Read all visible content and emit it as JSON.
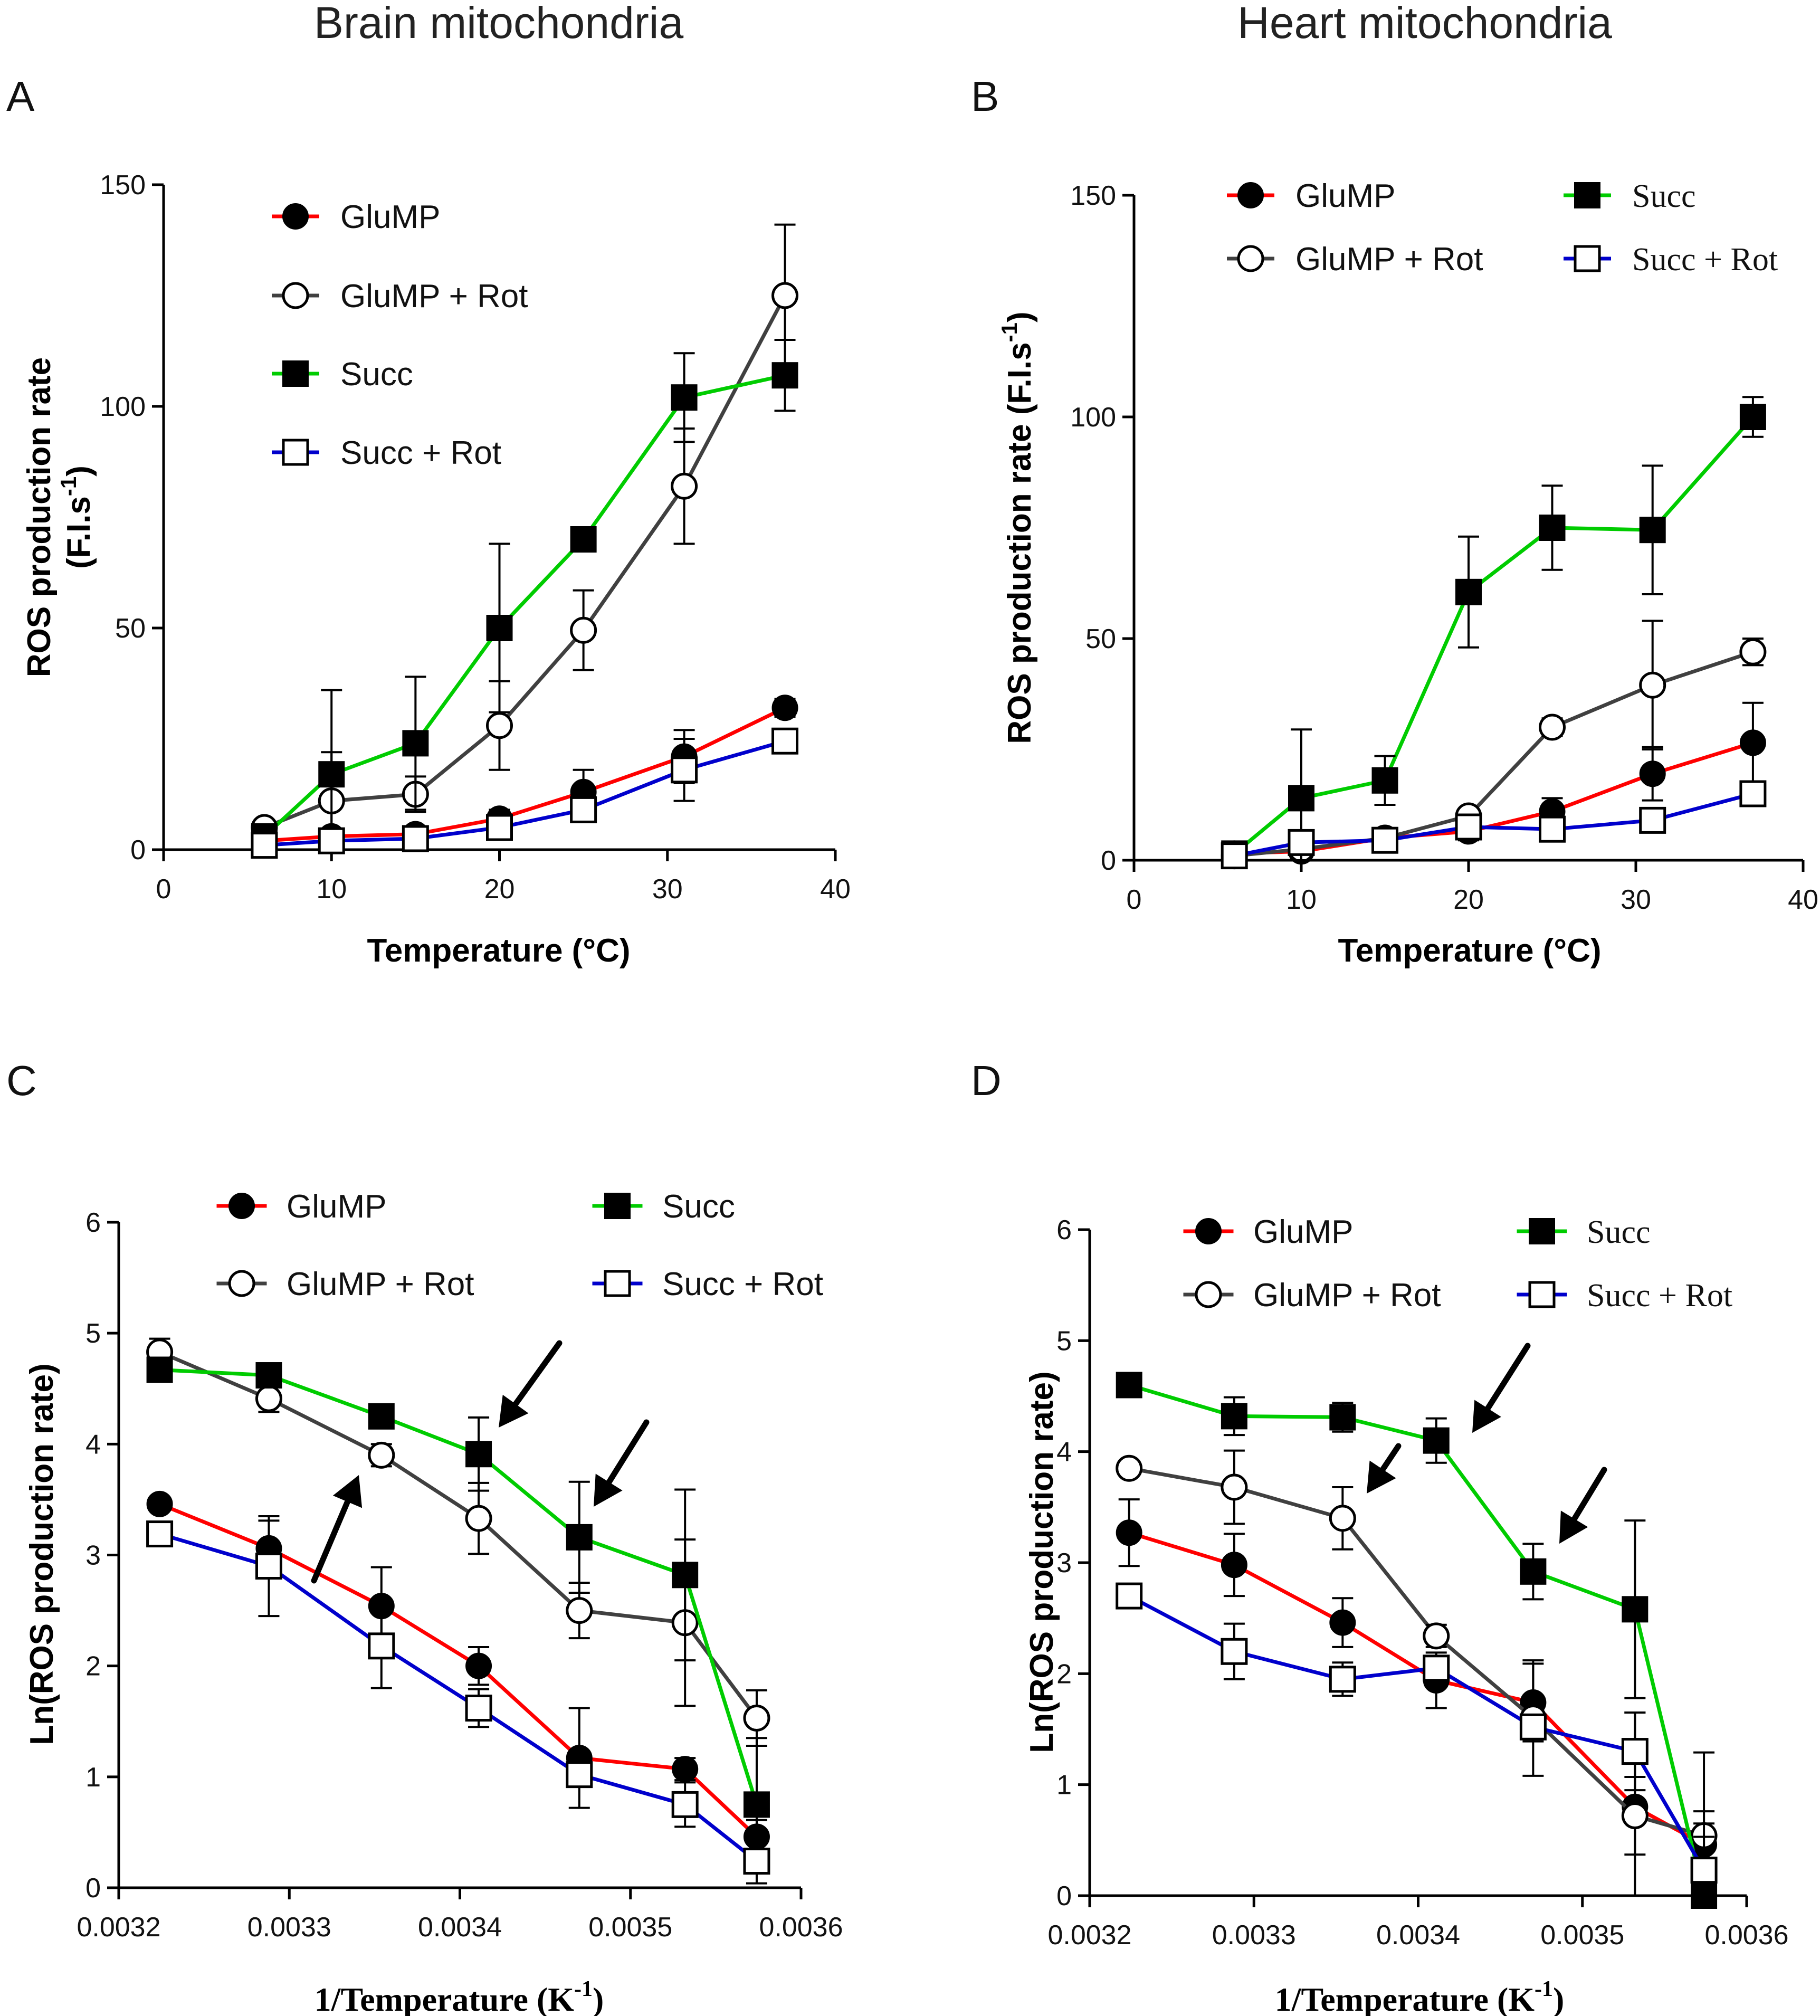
{
  "column_titles": {
    "left": "Brain mitochondria",
    "right": "Heart mitochondria"
  },
  "chart_data": [
    {
      "id": "A",
      "type": "line",
      "panel_label": "A",
      "xlabel": "Temperature (°C)",
      "ylabel_line1": "ROS production rate",
      "ylabel_line2": "(F.I.s",
      "ylabel_sup": "-1",
      "ylabel_close": ")",
      "xlim": [
        0,
        40
      ],
      "ylim": [
        0,
        150
      ],
      "xticks": [
        0,
        10,
        20,
        30,
        40
      ],
      "xtick_labels": [
        "0",
        "10",
        "20",
        "30",
        "40"
      ],
      "yticks": [
        0,
        50,
        100,
        150
      ],
      "ytick_labels": [
        "0",
        "50",
        "100",
        "150"
      ],
      "legend_order": [
        "GluMP",
        "GluMP + Rot",
        "Succ",
        "Succ + Rot"
      ],
      "series": [
        {
          "name": "GluMP",
          "color": "#ff0000",
          "marker": "filled-circle",
          "x": [
            6,
            10,
            15,
            20,
            25,
            31,
            37
          ],
          "y": [
            2,
            3,
            3.5,
            7,
            13,
            21,
            32
          ],
          "err": [
            1,
            1.5,
            1.5,
            2,
            5,
            6,
            2
          ]
        },
        {
          "name": "GluMP + Rot",
          "color": "#404040",
          "marker": "open-circle",
          "x": [
            6,
            10,
            15,
            20,
            25,
            31,
            37
          ],
          "y": [
            5,
            11,
            12.5,
            28,
            49.5,
            82,
            125
          ],
          "err": [
            1,
            11,
            4,
            10,
            9,
            13,
            16
          ]
        },
        {
          "name": "Succ",
          "color": "#00cc00",
          "marker": "filled-square",
          "x": [
            6,
            10,
            15,
            20,
            25,
            31,
            37
          ],
          "y": [
            3,
            17,
            24,
            50,
            70,
            102,
            107
          ],
          "err": [
            1,
            19,
            15,
            19,
            1,
            10,
            8
          ]
        },
        {
          "name": "Succ + Rot",
          "color": "#0000cc",
          "marker": "open-square",
          "x": [
            6,
            10,
            15,
            20,
            25,
            31,
            37
          ],
          "y": [
            1,
            2,
            2.5,
            5,
            9,
            18,
            24.5
          ],
          "err": [
            1,
            1,
            1,
            1.5,
            2,
            7,
            1
          ]
        }
      ]
    },
    {
      "id": "B",
      "type": "line",
      "panel_label": "B",
      "xlabel": "Temperature (°C)",
      "ylabel_line1": "ROS production rate (F.I.s",
      "ylabel_sup": "-1",
      "ylabel_close": ")",
      "xlim": [
        0,
        40
      ],
      "ylim": [
        0,
        150
      ],
      "xticks": [
        0,
        10,
        20,
        30,
        40
      ],
      "xtick_labels": [
        "0",
        "10",
        "20",
        "30",
        "40"
      ],
      "yticks": [
        0,
        50,
        100,
        150
      ],
      "ytick_labels": [
        "0",
        "50",
        "100",
        "150"
      ],
      "legend_order": [
        "GluMP",
        "Succ",
        "GluMP + Rot",
        "Succ + Rot"
      ],
      "series": [
        {
          "name": "GluMP",
          "color": "#ff0000",
          "marker": "filled-circle",
          "x": [
            6,
            10,
            15,
            20,
            25,
            31,
            37
          ],
          "y": [
            1.5,
            2,
            5,
            6.5,
            11,
            19.5,
            26.5
          ],
          "err": [
            1,
            1,
            2,
            2,
            3,
            6,
            9
          ]
        },
        {
          "name": "GluMP + Rot",
          "color": "#404040",
          "marker": "open-circle",
          "x": [
            6,
            10,
            15,
            20,
            25,
            31,
            37
          ],
          "y": [
            1,
            2.5,
            5,
            10,
            30,
            39.5,
            47
          ],
          "err": [
            1,
            1,
            2,
            1,
            2,
            14.5,
            3
          ]
        },
        {
          "name": "Succ",
          "color": "#00cc00",
          "marker": "filled-square",
          "x": [
            6,
            10,
            15,
            20,
            25,
            31,
            37
          ],
          "y": [
            1.5,
            14,
            18,
            60.5,
            75,
            74.5,
            100
          ],
          "err": [
            1,
            15.5,
            5.5,
            12.5,
            9.5,
            14.5,
            4.5
          ]
        },
        {
          "name": "Succ + Rot",
          "color": "#0000cc",
          "marker": "open-square",
          "x": [
            6,
            10,
            15,
            20,
            25,
            31,
            37
          ],
          "y": [
            1,
            4,
            4.5,
            7.5,
            7,
            9,
            15
          ],
          "err": [
            1,
            1,
            1,
            1,
            1,
            1,
            1
          ]
        }
      ]
    },
    {
      "id": "C",
      "type": "line",
      "panel_label": "C",
      "xlabel": "1/Temperature (K",
      "xlabel_sup": "-1",
      "xlabel_close": ")",
      "ylabel_line1": "Ln(ROS production rate)",
      "xlim": [
        0.0032,
        0.0036
      ],
      "ylim": [
        0,
        6
      ],
      "xticks": [
        0.0032,
        0.0033,
        0.0034,
        0.0035,
        0.0036
      ],
      "xtick_labels": [
        "0.0032",
        "0.0033",
        "0.0034",
        "0.0035",
        "0.0036"
      ],
      "yticks": [
        0,
        1,
        2,
        3,
        4,
        5,
        6
      ],
      "ytick_labels": [
        "0",
        "1",
        "2",
        "3",
        "4",
        "5",
        "6"
      ],
      "legend_order": [
        "GluMP",
        "Succ",
        "GluMP + Rot",
        "Succ + Rot"
      ],
      "series": [
        {
          "name": "GluMP",
          "color": "#ff0000",
          "marker": "filled-circle",
          "x": [
            0.003224,
            0.003288,
            0.003354,
            0.003411,
            0.00347,
            0.003532,
            0.003574
          ],
          "y": [
            3.46,
            3.06,
            2.54,
            2.0,
            1.17,
            1.07,
            0.46
          ],
          "err": [
            0.05,
            0.25,
            0.35,
            0.17,
            0.45,
            0.1,
            0.15
          ]
        },
        {
          "name": "GluMP + Rot",
          "color": "#404040",
          "marker": "open-circle",
          "x": [
            0.003224,
            0.003288,
            0.003354,
            0.003411,
            0.00347,
            0.003532,
            0.003574
          ],
          "y": [
            4.83,
            4.41,
            3.9,
            3.33,
            2.5,
            2.39,
            1.53
          ],
          "err": [
            0.12,
            0.12,
            0.1,
            0.32,
            0.25,
            0.75,
            0.25
          ]
        },
        {
          "name": "Succ",
          "color": "#00cc00",
          "marker": "filled-square",
          "x": [
            0.003224,
            0.003288,
            0.003354,
            0.003411,
            0.00347,
            0.003532,
            0.003574
          ],
          "y": [
            4.67,
            4.62,
            4.25,
            3.91,
            3.16,
            2.82,
            0.75
          ],
          "err": [
            0.08,
            0.05,
            0.05,
            0.33,
            0.5,
            0.77,
            0.6
          ]
        },
        {
          "name": "Succ + Rot",
          "color": "#0000cc",
          "marker": "open-square",
          "x": [
            0.003224,
            0.003288,
            0.003354,
            0.003411,
            0.00347,
            0.003532,
            0.003574
          ],
          "y": [
            3.19,
            2.9,
            2.18,
            1.62,
            1.02,
            0.75,
            0.24
          ],
          "err": [
            0.05,
            0.45,
            0.38,
            0.17,
            0.1,
            0.2,
            0.2
          ]
        }
      ],
      "annotations": [
        "arrow",
        "arrow",
        "arrow"
      ]
    },
    {
      "id": "D",
      "type": "line",
      "panel_label": "D",
      "xlabel": "1/Temperature (K",
      "xlabel_sup": "-1",
      "xlabel_close": ")",
      "ylabel_line1": "Ln(ROS production rate)",
      "xlim": [
        0.0032,
        0.0036
      ],
      "ylim": [
        0,
        6
      ],
      "xticks": [
        0.0032,
        0.0033,
        0.0034,
        0.0035,
        0.0036
      ],
      "xtick_labels": [
        "0.0032",
        "0.0033",
        "0.0034",
        "0.0035",
        "0.0036"
      ],
      "yticks": [
        0,
        1,
        2,
        3,
        4,
        5,
        6
      ],
      "ytick_labels": [
        "0",
        "1",
        "2",
        "3",
        "4",
        "5",
        "6"
      ],
      "legend_order": [
        "GluMP",
        "Succ",
        "GluMP + Rot",
        "Succ + Rot"
      ],
      "series": [
        {
          "name": "GluMP",
          "color": "#ff0000",
          "marker": "filled-circle",
          "x": [
            0.003224,
            0.003288,
            0.003354,
            0.003411,
            0.00347,
            0.003532,
            0.003574
          ],
          "y": [
            3.27,
            2.98,
            2.46,
            1.94,
            1.74,
            0.8,
            0.46
          ],
          "err": [
            0.3,
            0.28,
            0.22,
            0.25,
            0.35,
            0.85,
            0.3
          ]
        },
        {
          "name": "GluMP + Rot",
          "color": "#404040",
          "marker": "open-circle",
          "x": [
            0.003224,
            0.003288,
            0.003354,
            0.003411,
            0.00347,
            0.003532,
            0.003574
          ],
          "y": [
            3.85,
            3.68,
            3.4,
            2.34,
            1.6,
            0.72,
            0.54
          ],
          "err": [
            0.05,
            0.33,
            0.28,
            0.1,
            0.52,
            0.35,
            0.75
          ]
        },
        {
          "name": "Succ",
          "color": "#00cc00",
          "marker": "filled-square",
          "x": [
            0.003224,
            0.003288,
            0.003354,
            0.003411,
            0.00347,
            0.003532,
            0.003574
          ],
          "y": [
            4.6,
            4.32,
            4.31,
            4.1,
            2.92,
            2.58,
            0.0
          ],
          "err": [
            0.05,
            0.17,
            0.13,
            0.2,
            0.25,
            0.8,
            0.65
          ]
        },
        {
          "name": "Succ + Rot",
          "color": "#0000cc",
          "marker": "open-square",
          "x": [
            0.003224,
            0.003288,
            0.003354,
            0.003411,
            0.00347,
            0.003532,
            0.003574
          ],
          "y": [
            2.7,
            2.2,
            1.95,
            2.05,
            1.52,
            1.3,
            0.23
          ],
          "err": [
            0.05,
            0.25,
            0.15,
            0.1,
            0.1,
            0.35,
            0.3
          ]
        }
      ],
      "annotations": [
        "arrow",
        "arrow",
        "arrow"
      ]
    }
  ]
}
